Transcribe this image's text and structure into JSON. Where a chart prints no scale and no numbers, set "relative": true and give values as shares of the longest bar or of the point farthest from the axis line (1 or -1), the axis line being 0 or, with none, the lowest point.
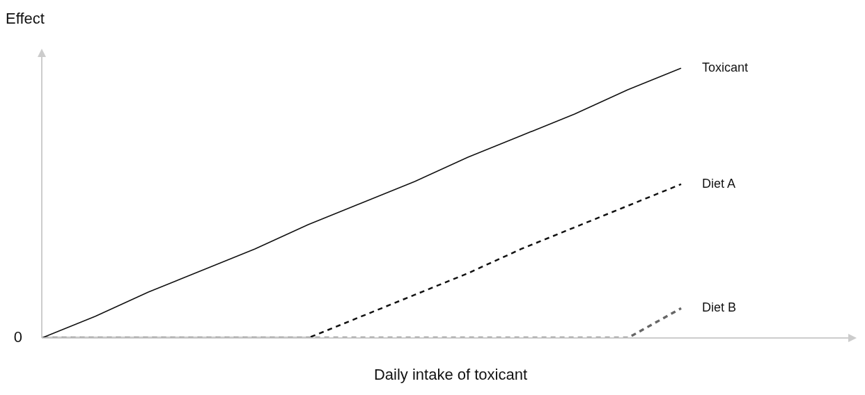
{
  "chart_data": {
    "type": "line",
    "relative": true,
    "xlabel": "Daily intake of toxicant",
    "ylabel": "Effect",
    "annotations": [
      "0"
    ],
    "legend": false,
    "grid": false,
    "categories": [
      null,
      null,
      null,
      null,
      null,
      null,
      null,
      null,
      null,
      null,
      null,
      null,
      null
    ],
    "series": [
      {
        "name": "Toxicant",
        "color": "#111111",
        "line_style": "solid",
        "values": [
          0,
          0.08,
          0.17,
          0.25,
          0.33,
          0.42,
          0.5,
          0.58,
          0.67,
          0.75,
          0.83,
          0.92,
          1
        ]
      },
      {
        "name": "Diet A",
        "color": "#111111",
        "line_style": "dashed",
        "values": [
          0,
          0,
          0,
          0,
          0,
          0,
          0.08,
          0.16,
          0.24,
          0.33,
          0.41,
          0.49,
          0.57
        ]
      },
      {
        "name": "Diet B",
        "color": "#666666",
        "line_style": "dashed",
        "values": [
          0,
          0,
          0,
          0,
          0,
          0,
          0,
          0,
          0,
          0,
          0,
          0,
          0.11
        ]
      }
    ]
  }
}
